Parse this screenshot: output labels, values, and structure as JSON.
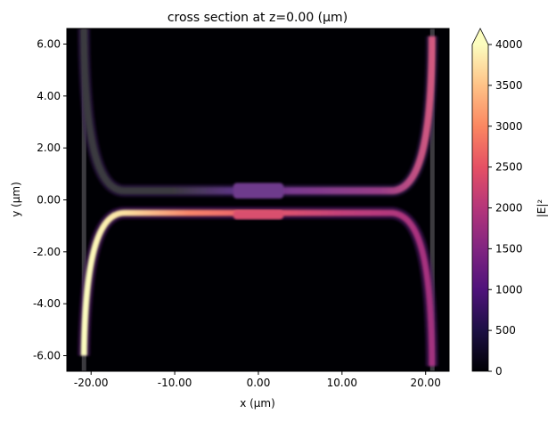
{
  "chart_data": {
    "type": "heatmap",
    "title": "cross section at z=0.00 (µm)",
    "xlabel": "x (µm)",
    "ylabel": "y (µm)",
    "xlim": [
      -22.9,
      22.8
    ],
    "ylim": [
      -6.6,
      6.6
    ],
    "xticks": [
      -20,
      -10,
      0,
      10,
      20
    ],
    "xtick_labels": [
      "-20.00",
      "-10.00",
      "0.00",
      "10.00",
      "20.00"
    ],
    "yticks": [
      6,
      4,
      2,
      0,
      -2,
      -4,
      -6
    ],
    "ytick_labels": [
      "6.00",
      "4.00",
      "2.00",
      "0.00",
      "-2.00",
      "-4.00",
      "-6.00"
    ],
    "colormap": "magma",
    "background_color": "#000004",
    "structure_color": "#3b3a3f",
    "colorbar": {
      "label": "|E|²",
      "range": [
        0,
        4000
      ],
      "extend": "max",
      "ticks": [
        0,
        500,
        1000,
        1500,
        2000,
        2500,
        3000,
        3500,
        4000
      ],
      "tick_labels": [
        "0",
        "500",
        "1000",
        "1500",
        "2000",
        "2500",
        "3000",
        "3500",
        "4000"
      ]
    },
    "grid": false
  }
}
